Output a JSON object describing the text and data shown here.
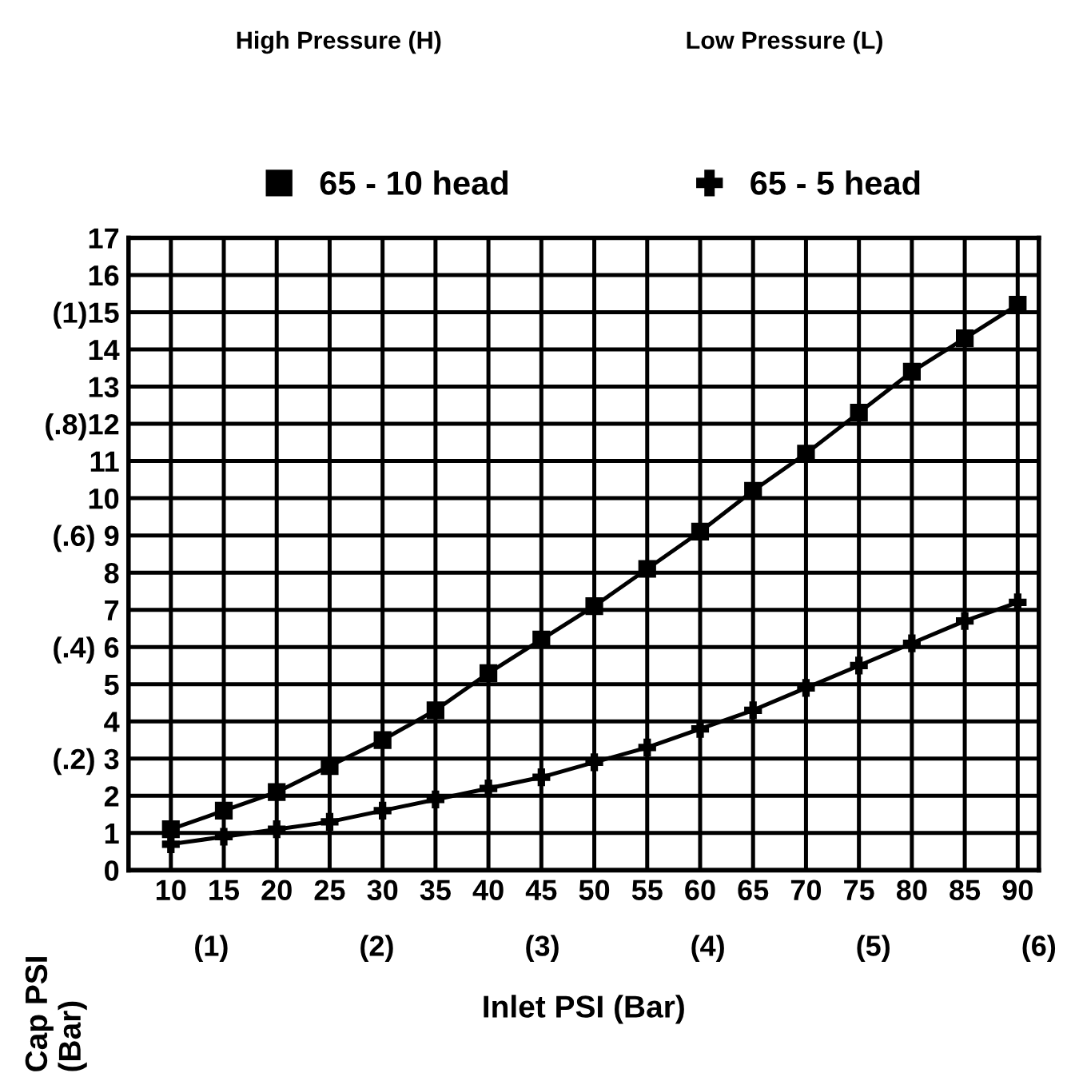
{
  "chart_data": {
    "type": "line",
    "xlabel": "Inlet PSI (Bar)",
    "ylabel": "Cap PSI\n(Bar)",
    "annotations": [
      "High Pressure (H)",
      "Low Pressure (L)"
    ],
    "x": [
      10,
      15,
      20,
      25,
      30,
      35,
      40,
      45,
      50,
      55,
      60,
      65,
      70,
      75,
      80,
      85,
      90
    ],
    "series": [
      {
        "name": "65 - 10 head",
        "color": "#000000",
        "marker": "square",
        "values": [
          1.1,
          1.6,
          2.1,
          2.8,
          3.5,
          4.3,
          5.3,
          6.2,
          7.1,
          8.1,
          9.1,
          10.2,
          11.2,
          12.3,
          13.4,
          14.3,
          15.2
        ]
      },
      {
        "name": "65 - 5 head",
        "color": "#000000",
        "marker": "cross",
        "values": [
          0.7,
          0.9,
          1.1,
          1.3,
          1.6,
          1.9,
          2.2,
          2.5,
          2.9,
          3.3,
          3.8,
          4.3,
          4.9,
          5.5,
          6.1,
          6.7,
          7.2
        ]
      }
    ],
    "xlim": [
      6,
      92
    ],
    "xticks": [
      10,
      15,
      20,
      25,
      30,
      35,
      40,
      45,
      50,
      55,
      60,
      65,
      70,
      75,
      80,
      85,
      90
    ],
    "x2lim": [
      0.5,
      6
    ],
    "x2ticks": [
      {
        "value": 1,
        "label": "(1)"
      },
      {
        "value": 2,
        "label": "(2)"
      },
      {
        "value": 3,
        "label": "(3)"
      },
      {
        "value": 4,
        "label": "(4)"
      },
      {
        "value": 5,
        "label": "(5)"
      },
      {
        "value": 6,
        "label": "(6)"
      }
    ],
    "ylim": [
      0,
      17
    ],
    "yticks": [
      0,
      1,
      2,
      {
        "value": 3,
        "label": "(.2) 3"
      },
      4,
      5,
      {
        "value": 6,
        "label": "(.4) 6"
      },
      7,
      8,
      {
        "value": 9,
        "label": "(.6) 9"
      },
      10,
      11,
      {
        "value": 12,
        "label": "(.8)12"
      },
      13,
      {
        "value": 14,
        "label": "14"
      },
      {
        "value": 15,
        "label": "(1)15"
      },
      16,
      17
    ],
    "grid": true,
    "legend": "top",
    "line_style": "solid"
  }
}
